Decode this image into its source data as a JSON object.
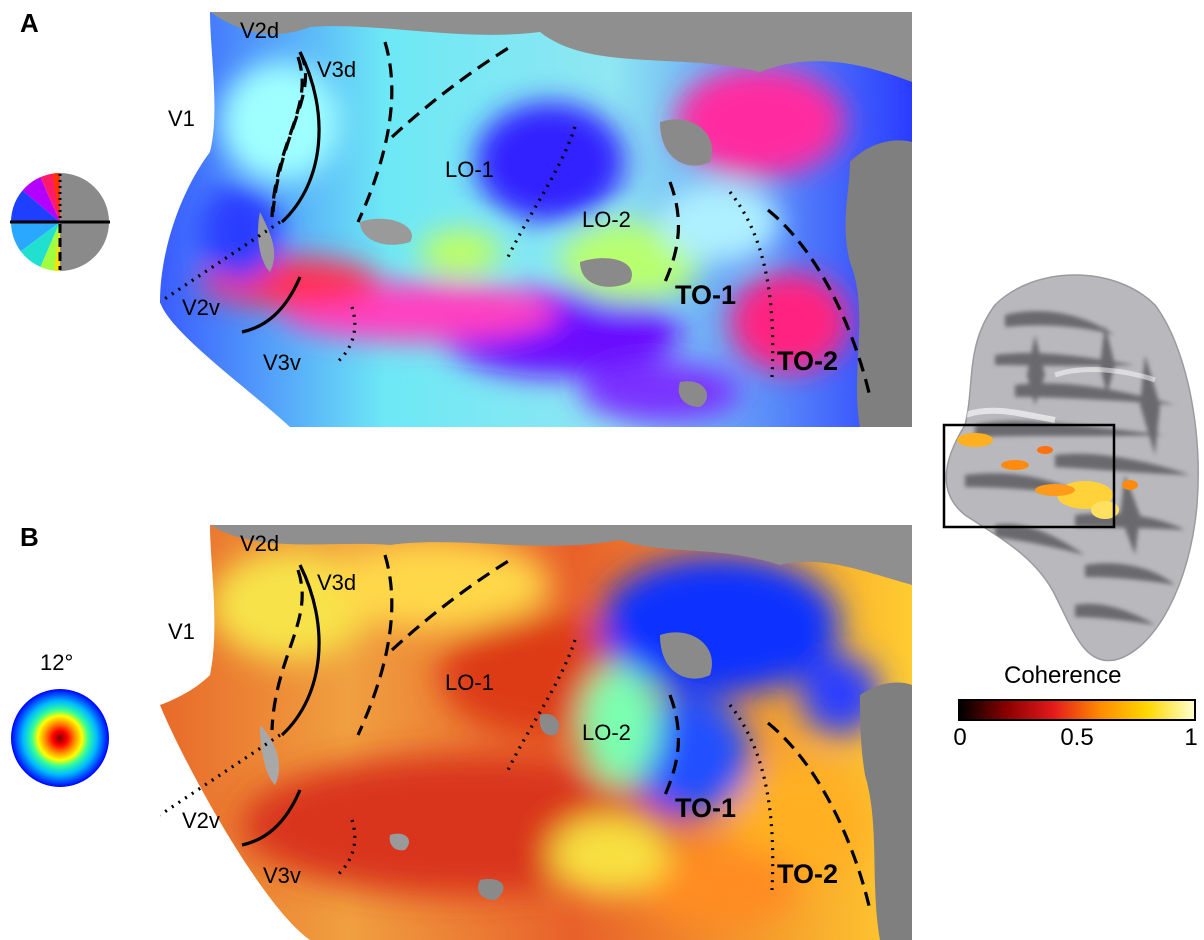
{
  "panel_a": {
    "letter": "A",
    "area_labels": {
      "v1": "V1",
      "v2d": "V2d",
      "v3d": "V3d",
      "v2v": "V2v",
      "v3v": "V3v",
      "lo1": "LO-1",
      "lo2": "LO-2",
      "to1": "TO-1",
      "to2": "TO-2"
    },
    "legend": {
      "type": "polar-angle color wheel",
      "icon": "polar-angle-wheel-icon"
    }
  },
  "panel_b": {
    "letter": "B",
    "area_labels": {
      "v1": "V1",
      "v2d": "V2d",
      "v3d": "V3d",
      "v2v": "V2v",
      "v3v": "V3v",
      "lo1": "LO-1",
      "lo2": "LO-2",
      "to1": "TO-1",
      "to2": "TO-2"
    },
    "legend": {
      "eccentricity_label": "12°",
      "icon": "eccentricity-disk-icon"
    }
  },
  "brain": {
    "icon": "inflated-brain-icon",
    "inset_box": "inset-box"
  },
  "colorbar": {
    "title": "Coherence",
    "ticks": [
      "0",
      "0.5",
      "1"
    ],
    "colors": [
      "#000000",
      "#8b0000",
      "#e31a1c",
      "#ff8c00",
      "#ffd700",
      "#ffffcc"
    ]
  }
}
